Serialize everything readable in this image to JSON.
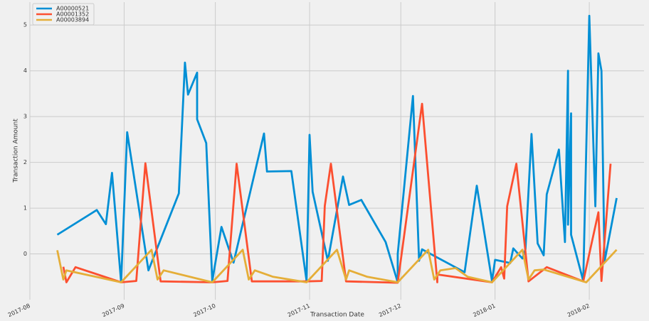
{
  "chart_data": {
    "type": "line",
    "x_label": "Transaction Date",
    "y_label": "Transaction Amount",
    "xlim": [
      "2017-08-01",
      "2018-02-19"
    ],
    "ylim": [
      -1,
      5.5
    ],
    "xticks": [
      "2017-08",
      "2017-09",
      "2017-10",
      "2017-11",
      "2017-12",
      "2018-01",
      "2018-02"
    ],
    "yticks": [
      0,
      1,
      2,
      3,
      4,
      5
    ],
    "grid": true,
    "legend": "upper left",
    "series": [
      {
        "name": "A00000521",
        "color": "#008fd5",
        "x": [
          "2017-08-10",
          "2017-08-23",
          "2017-08-26",
          "2017-08-28",
          "2017-08-31",
          "2017-09-02",
          "2017-09-09",
          "2017-09-19",
          "2017-09-21",
          "2017-09-22",
          "2017-09-25",
          "2017-09-25",
          "2017-09-28",
          "2017-09-30",
          "2017-10-03",
          "2017-10-07",
          "2017-10-17",
          "2017-10-18",
          "2017-10-26",
          "2017-10-31",
          "2017-11-01",
          "2017-11-02",
          "2017-11-07",
          "2017-11-12",
          "2017-11-14",
          "2017-11-18",
          "2017-11-26",
          "2017-11-30",
          "2017-11-30",
          "2017-12-05",
          "2017-12-07",
          "2017-12-08",
          "2017-12-22",
          "2017-12-26",
          "2017-12-31",
          "2018-01-01",
          "2018-01-06",
          "2018-01-07",
          "2018-01-10",
          "2018-01-11",
          "2018-01-13",
          "2018-01-15",
          "2018-01-17",
          "2018-01-18",
          "2018-01-22",
          "2018-01-24",
          "2018-01-25",
          "2018-01-25",
          "2018-01-26",
          "2018-01-26",
          "2018-01-30",
          "2018-02-01",
          "2018-02-03",
          "2018-02-04",
          "2018-02-05",
          "2018-02-06",
          "2018-02-10"
        ],
        "values": [
          0.42,
          0.96,
          0.65,
          1.77,
          -0.62,
          2.66,
          -0.36,
          1.32,
          4.18,
          3.48,
          3.96,
          2.94,
          2.42,
          -0.59,
          0.59,
          -0.19,
          2.63,
          1.8,
          1.81,
          -0.59,
          2.6,
          1.36,
          -0.15,
          1.69,
          1.07,
          1.18,
          0.26,
          -0.62,
          0.0,
          3.45,
          -0.15,
          0.1,
          -0.4,
          1.49,
          -0.59,
          -0.13,
          -0.2,
          0.12,
          -0.1,
          0.1,
          2.62,
          0.23,
          -0.03,
          1.3,
          2.28,
          0.26,
          4.0,
          0.64,
          3.07,
          0.42,
          -0.59,
          5.2,
          1.04,
          4.38,
          4.0,
          -0.17,
          1.22
        ]
      },
      {
        "name": "A00001352",
        "color": "#fc4f30",
        "x": [
          "2017-08-12",
          "2017-08-13",
          "2017-08-16",
          "2017-08-31",
          "2017-09-05",
          "2017-09-08",
          "2017-09-13",
          "2017-09-30",
          "2017-10-05",
          "2017-10-08",
          "2017-10-13",
          "2017-10-31",
          "2017-11-05",
          "2017-11-06",
          "2017-11-08",
          "2017-11-13",
          "2017-11-30",
          "2017-12-08",
          "2017-12-13",
          "2017-12-13",
          "2017-12-31",
          "2018-01-03",
          "2018-01-04",
          "2018-01-05",
          "2018-01-08",
          "2018-01-12",
          "2018-01-18",
          "2018-01-30",
          "2018-02-04",
          "2018-02-05",
          "2018-02-08"
        ],
        "values": [
          -0.28,
          -0.62,
          -0.29,
          -0.62,
          -0.59,
          1.98,
          -0.6,
          -0.62,
          -0.59,
          1.97,
          -0.6,
          -0.6,
          -0.59,
          1.05,
          1.97,
          -0.6,
          -0.63,
          3.28,
          -0.62,
          -0.45,
          -0.62,
          -0.29,
          -0.54,
          1.04,
          1.97,
          -0.6,
          -0.29,
          -0.6,
          0.91,
          -0.59,
          1.97
        ]
      },
      {
        "name": "A00003894",
        "color": "#e5ae38",
        "x": [
          "2017-08-10",
          "2017-08-12",
          "2017-08-13",
          "2017-08-31",
          "2017-09-10",
          "2017-09-12",
          "2017-09-14",
          "2017-09-30",
          "2017-10-10",
          "2017-10-12",
          "2017-10-14",
          "2017-10-20",
          "2017-10-31",
          "2017-11-10",
          "2017-11-13",
          "2017-11-14",
          "2017-11-20",
          "2017-11-30",
          "2017-12-10",
          "2017-12-12",
          "2017-12-14",
          "2017-12-19",
          "2017-12-23",
          "2017-12-31",
          "2018-01-10",
          "2018-01-12",
          "2018-01-14",
          "2018-01-17",
          "2018-01-31",
          "2018-02-10"
        ],
        "values": [
          0.08,
          -0.56,
          -0.36,
          -0.62,
          0.09,
          -0.56,
          -0.36,
          -0.62,
          0.09,
          -0.56,
          -0.36,
          -0.5,
          -0.62,
          0.09,
          -0.56,
          -0.36,
          -0.5,
          -0.62,
          0.09,
          -0.56,
          -0.36,
          -0.31,
          -0.5,
          -0.62,
          0.09,
          -0.56,
          -0.36,
          -0.34,
          -0.62,
          0.09
        ]
      }
    ]
  }
}
